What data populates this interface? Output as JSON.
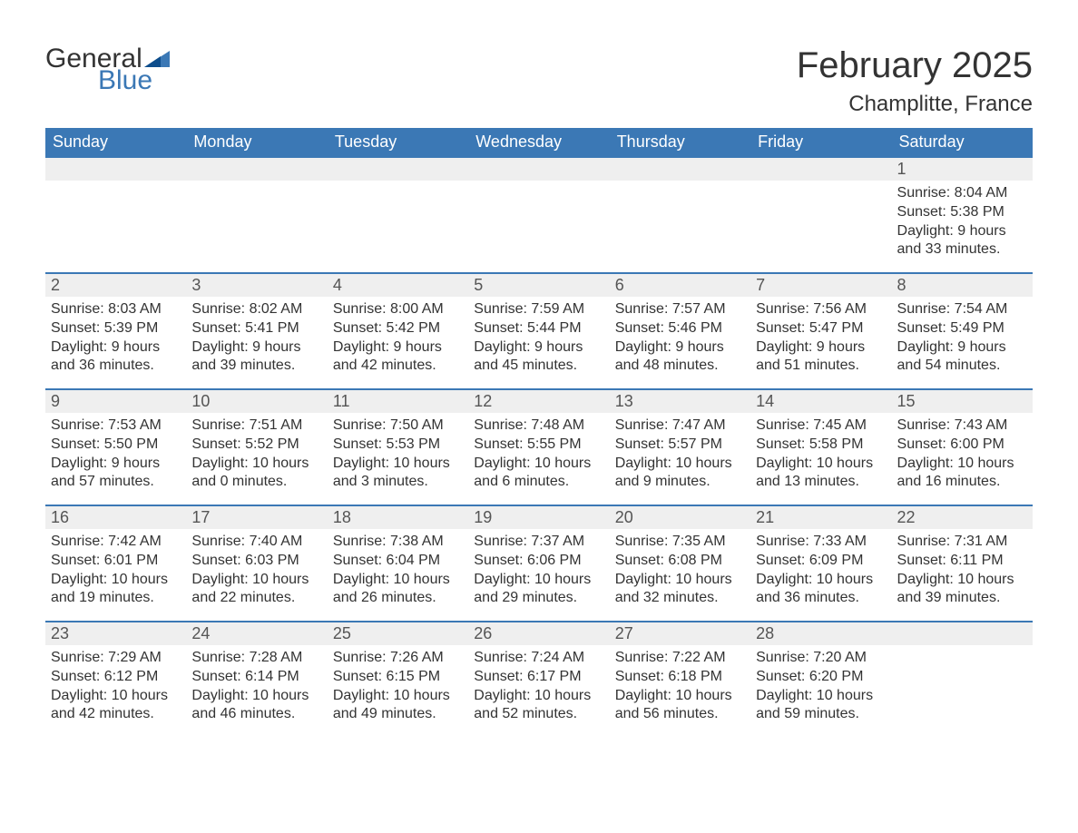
{
  "brand": {
    "general": "General",
    "blue": "Blue"
  },
  "header": {
    "month_title": "February 2025",
    "location": "Champlitte, France"
  },
  "styling": {
    "header_bg": "#3b78b5",
    "header_text": "#ffffff",
    "daynum_bg": "#efefef",
    "daynum_border_top": "#3b78b5",
    "body_bg": "#ffffff",
    "text_color": "#333333",
    "logo_blue": "#3b78b5",
    "month_title_fontsize": 40,
    "location_fontsize": 24,
    "day_header_fontsize": 18,
    "daynum_fontsize": 18,
    "cell_fontsize": 16,
    "columns": 7,
    "rows": 5
  },
  "day_headers": [
    "Sunday",
    "Monday",
    "Tuesday",
    "Wednesday",
    "Thursday",
    "Friday",
    "Saturday"
  ],
  "weeks": [
    [
      null,
      null,
      null,
      null,
      null,
      null,
      {
        "num": "1",
        "sunrise": "Sunrise: 8:04 AM",
        "sunset": "Sunset: 5:38 PM",
        "daylight1": "Daylight: 9 hours",
        "daylight2": "and 33 minutes."
      }
    ],
    [
      {
        "num": "2",
        "sunrise": "Sunrise: 8:03 AM",
        "sunset": "Sunset: 5:39 PM",
        "daylight1": "Daylight: 9 hours",
        "daylight2": "and 36 minutes."
      },
      {
        "num": "3",
        "sunrise": "Sunrise: 8:02 AM",
        "sunset": "Sunset: 5:41 PM",
        "daylight1": "Daylight: 9 hours",
        "daylight2": "and 39 minutes."
      },
      {
        "num": "4",
        "sunrise": "Sunrise: 8:00 AM",
        "sunset": "Sunset: 5:42 PM",
        "daylight1": "Daylight: 9 hours",
        "daylight2": "and 42 minutes."
      },
      {
        "num": "5",
        "sunrise": "Sunrise: 7:59 AM",
        "sunset": "Sunset: 5:44 PM",
        "daylight1": "Daylight: 9 hours",
        "daylight2": "and 45 minutes."
      },
      {
        "num": "6",
        "sunrise": "Sunrise: 7:57 AM",
        "sunset": "Sunset: 5:46 PM",
        "daylight1": "Daylight: 9 hours",
        "daylight2": "and 48 minutes."
      },
      {
        "num": "7",
        "sunrise": "Sunrise: 7:56 AM",
        "sunset": "Sunset: 5:47 PM",
        "daylight1": "Daylight: 9 hours",
        "daylight2": "and 51 minutes."
      },
      {
        "num": "8",
        "sunrise": "Sunrise: 7:54 AM",
        "sunset": "Sunset: 5:49 PM",
        "daylight1": "Daylight: 9 hours",
        "daylight2": "and 54 minutes."
      }
    ],
    [
      {
        "num": "9",
        "sunrise": "Sunrise: 7:53 AM",
        "sunset": "Sunset: 5:50 PM",
        "daylight1": "Daylight: 9 hours",
        "daylight2": "and 57 minutes."
      },
      {
        "num": "10",
        "sunrise": "Sunrise: 7:51 AM",
        "sunset": "Sunset: 5:52 PM",
        "daylight1": "Daylight: 10 hours",
        "daylight2": "and 0 minutes."
      },
      {
        "num": "11",
        "sunrise": "Sunrise: 7:50 AM",
        "sunset": "Sunset: 5:53 PM",
        "daylight1": "Daylight: 10 hours",
        "daylight2": "and 3 minutes."
      },
      {
        "num": "12",
        "sunrise": "Sunrise: 7:48 AM",
        "sunset": "Sunset: 5:55 PM",
        "daylight1": "Daylight: 10 hours",
        "daylight2": "and 6 minutes."
      },
      {
        "num": "13",
        "sunrise": "Sunrise: 7:47 AM",
        "sunset": "Sunset: 5:57 PM",
        "daylight1": "Daylight: 10 hours",
        "daylight2": "and 9 minutes."
      },
      {
        "num": "14",
        "sunrise": "Sunrise: 7:45 AM",
        "sunset": "Sunset: 5:58 PM",
        "daylight1": "Daylight: 10 hours",
        "daylight2": "and 13 minutes."
      },
      {
        "num": "15",
        "sunrise": "Sunrise: 7:43 AM",
        "sunset": "Sunset: 6:00 PM",
        "daylight1": "Daylight: 10 hours",
        "daylight2": "and 16 minutes."
      }
    ],
    [
      {
        "num": "16",
        "sunrise": "Sunrise: 7:42 AM",
        "sunset": "Sunset: 6:01 PM",
        "daylight1": "Daylight: 10 hours",
        "daylight2": "and 19 minutes."
      },
      {
        "num": "17",
        "sunrise": "Sunrise: 7:40 AM",
        "sunset": "Sunset: 6:03 PM",
        "daylight1": "Daylight: 10 hours",
        "daylight2": "and 22 minutes."
      },
      {
        "num": "18",
        "sunrise": "Sunrise: 7:38 AM",
        "sunset": "Sunset: 6:04 PM",
        "daylight1": "Daylight: 10 hours",
        "daylight2": "and 26 minutes."
      },
      {
        "num": "19",
        "sunrise": "Sunrise: 7:37 AM",
        "sunset": "Sunset: 6:06 PM",
        "daylight1": "Daylight: 10 hours",
        "daylight2": "and 29 minutes."
      },
      {
        "num": "20",
        "sunrise": "Sunrise: 7:35 AM",
        "sunset": "Sunset: 6:08 PM",
        "daylight1": "Daylight: 10 hours",
        "daylight2": "and 32 minutes."
      },
      {
        "num": "21",
        "sunrise": "Sunrise: 7:33 AM",
        "sunset": "Sunset: 6:09 PM",
        "daylight1": "Daylight: 10 hours",
        "daylight2": "and 36 minutes."
      },
      {
        "num": "22",
        "sunrise": "Sunrise: 7:31 AM",
        "sunset": "Sunset: 6:11 PM",
        "daylight1": "Daylight: 10 hours",
        "daylight2": "and 39 minutes."
      }
    ],
    [
      {
        "num": "23",
        "sunrise": "Sunrise: 7:29 AM",
        "sunset": "Sunset: 6:12 PM",
        "daylight1": "Daylight: 10 hours",
        "daylight2": "and 42 minutes."
      },
      {
        "num": "24",
        "sunrise": "Sunrise: 7:28 AM",
        "sunset": "Sunset: 6:14 PM",
        "daylight1": "Daylight: 10 hours",
        "daylight2": "and 46 minutes."
      },
      {
        "num": "25",
        "sunrise": "Sunrise: 7:26 AM",
        "sunset": "Sunset: 6:15 PM",
        "daylight1": "Daylight: 10 hours",
        "daylight2": "and 49 minutes."
      },
      {
        "num": "26",
        "sunrise": "Sunrise: 7:24 AM",
        "sunset": "Sunset: 6:17 PM",
        "daylight1": "Daylight: 10 hours",
        "daylight2": "and 52 minutes."
      },
      {
        "num": "27",
        "sunrise": "Sunrise: 7:22 AM",
        "sunset": "Sunset: 6:18 PM",
        "daylight1": "Daylight: 10 hours",
        "daylight2": "and 56 minutes."
      },
      {
        "num": "28",
        "sunrise": "Sunrise: 7:20 AM",
        "sunset": "Sunset: 6:20 PM",
        "daylight1": "Daylight: 10 hours",
        "daylight2": "and 59 minutes."
      },
      null
    ]
  ]
}
